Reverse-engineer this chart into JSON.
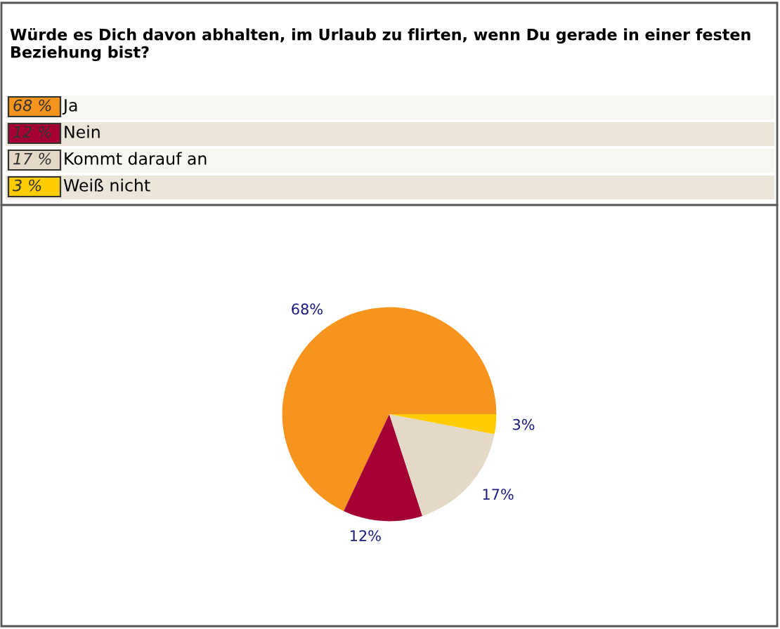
{
  "chart_data": {
    "type": "pie",
    "title": "Würde es Dich davon abhalten, im Urlaub zu flirten, wenn Du gerade in einer festen Beziehung bist?",
    "categories": [
      "Ja",
      "Nein",
      "Kommt darauf an",
      "Weiß nicht"
    ],
    "values": [
      68,
      12,
      17,
      3
    ],
    "colors": [
      "#f7941d",
      "#a50034",
      "#e3d9c6",
      "#ffcc00"
    ],
    "value_labels": [
      "68%",
      "12%",
      "17%",
      "3%"
    ],
    "legend": "top"
  }
}
